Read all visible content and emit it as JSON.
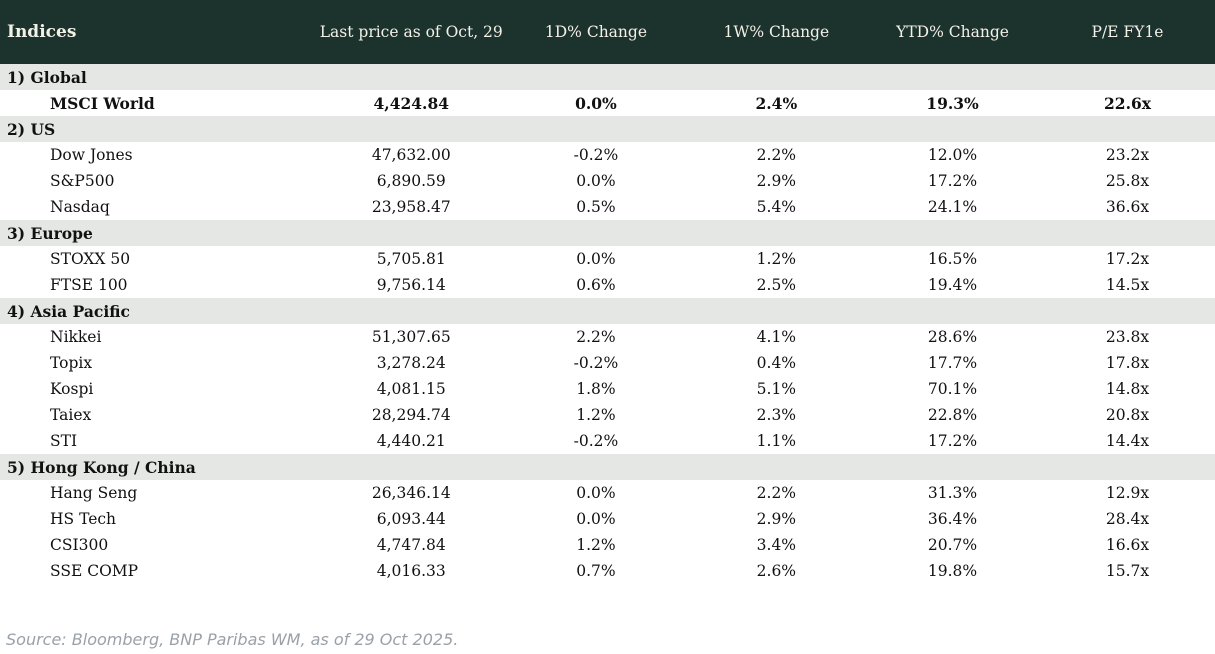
{
  "colors": {
    "header_bg": "#1c332d",
    "header_fg": "#f3f0e8",
    "section_band_bg": "#e4e7e3",
    "up": "#008a00",
    "down": "#c00000",
    "flat": "#111111",
    "source_text": "#9aa1a8"
  },
  "footer": {
    "source": "Source: Bloomberg, BNP Paribas WM, as of 29 Oct 2025."
  },
  "chart_data": {
    "type": "table",
    "title": "Indices",
    "columns": [
      "Indices",
      "Last price as of Oct, 29",
      "1D% Change",
      "1W% Change",
      "YTD% Change",
      "P/E FY1e"
    ],
    "sections": [
      {
        "label": "1) Global",
        "rows": [
          {
            "name": "MSCI World",
            "last_price": "4,424.84",
            "d1": {
              "v": "0.0%",
              "dir": "down"
            },
            "w1": {
              "v": "2.4%",
              "dir": "up"
            },
            "ytd": {
              "v": "19.3%",
              "dir": "up"
            },
            "pe": "22.6x",
            "emphasis": true
          }
        ]
      },
      {
        "label": "2) US",
        "rows": [
          {
            "name": "Dow Jones",
            "last_price": "47,632.00",
            "d1": {
              "v": "-0.2%",
              "dir": "down"
            },
            "w1": {
              "v": "2.2%",
              "dir": "up"
            },
            "ytd": {
              "v": "12.0%",
              "dir": "up"
            },
            "pe": "23.2x",
            "emphasis": false
          },
          {
            "name": "S&P500",
            "last_price": "6,890.59",
            "d1": {
              "v": "0.0%",
              "dir": "down"
            },
            "w1": {
              "v": "2.9%",
              "dir": "up"
            },
            "ytd": {
              "v": "17.2%",
              "dir": "up"
            },
            "pe": "25.8x",
            "emphasis": false
          },
          {
            "name": "Nasdaq",
            "last_price": "23,958.47",
            "d1": {
              "v": "0.5%",
              "dir": "up"
            },
            "w1": {
              "v": "5.4%",
              "dir": "up"
            },
            "ytd": {
              "v": "24.1%",
              "dir": "up"
            },
            "pe": "36.6x",
            "emphasis": false
          }
        ]
      },
      {
        "label": "3) Europe",
        "rows": [
          {
            "name": "STOXX 50",
            "last_price": "5,705.81",
            "d1": {
              "v": "0.0%",
              "dir": "up"
            },
            "w1": {
              "v": "1.2%",
              "dir": "up"
            },
            "ytd": {
              "v": "16.5%",
              "dir": "up"
            },
            "pe": "17.2x",
            "emphasis": false
          },
          {
            "name": "FTSE 100",
            "last_price": "9,756.14",
            "d1": {
              "v": "0.6%",
              "dir": "up"
            },
            "w1": {
              "v": "2.5%",
              "dir": "up"
            },
            "ytd": {
              "v": "19.4%",
              "dir": "up"
            },
            "pe": "14.5x",
            "emphasis": false
          }
        ]
      },
      {
        "label": "4) Asia Pacific",
        "rows": [
          {
            "name": "Nikkei",
            "last_price": "51,307.65",
            "d1": {
              "v": "2.2%",
              "dir": "up"
            },
            "w1": {
              "v": "4.1%",
              "dir": "up"
            },
            "ytd": {
              "v": "28.6%",
              "dir": "up"
            },
            "pe": "23.8x",
            "emphasis": false
          },
          {
            "name": "Topix",
            "last_price": "3,278.24",
            "d1": {
              "v": "-0.2%",
              "dir": "down"
            },
            "w1": {
              "v": "0.4%",
              "dir": "up"
            },
            "ytd": {
              "v": "17.7%",
              "dir": "up"
            },
            "pe": "17.8x",
            "emphasis": false
          },
          {
            "name": "Kospi",
            "last_price": "4,081.15",
            "d1": {
              "v": "1.8%",
              "dir": "up"
            },
            "w1": {
              "v": "5.1%",
              "dir": "up"
            },
            "ytd": {
              "v": "70.1%",
              "dir": "up"
            },
            "pe": "14.8x",
            "emphasis": false
          },
          {
            "name": "Taiex",
            "last_price": "28,294.74",
            "d1": {
              "v": "1.2%",
              "dir": "up"
            },
            "w1": {
              "v": "2.3%",
              "dir": "up"
            },
            "ytd": {
              "v": "22.8%",
              "dir": "up"
            },
            "pe": "20.8x",
            "emphasis": false
          },
          {
            "name": "STI",
            "last_price": "4,440.21",
            "d1": {
              "v": "-0.2%",
              "dir": "down"
            },
            "w1": {
              "v": "1.1%",
              "dir": "up"
            },
            "ytd": {
              "v": "17.2%",
              "dir": "up"
            },
            "pe": "14.4x",
            "emphasis": false
          }
        ]
      },
      {
        "label": "5) Hong Kong / China",
        "rows": [
          {
            "name": "Hang Seng",
            "last_price": "26,346.14",
            "d1": {
              "v": "0.0%",
              "dir": "flat"
            },
            "w1": {
              "v": "2.2%",
              "dir": "up"
            },
            "ytd": {
              "v": "31.3%",
              "dir": "up"
            },
            "pe": "12.9x",
            "emphasis": false
          },
          {
            "name": "HS Tech",
            "last_price": "6,093.44",
            "d1": {
              "v": "0.0%",
              "dir": "flat"
            },
            "w1": {
              "v": "2.9%",
              "dir": "up"
            },
            "ytd": {
              "v": "36.4%",
              "dir": "up"
            },
            "pe": "28.4x",
            "emphasis": false
          },
          {
            "name": "CSI300",
            "last_price": "4,747.84",
            "d1": {
              "v": "1.2%",
              "dir": "up"
            },
            "w1": {
              "v": "3.4%",
              "dir": "up"
            },
            "ytd": {
              "v": "20.7%",
              "dir": "up"
            },
            "pe": "16.6x",
            "emphasis": false
          },
          {
            "name": "SSE COMP",
            "last_price": "4,016.33",
            "d1": {
              "v": "0.7%",
              "dir": "up"
            },
            "w1": {
              "v": "2.6%",
              "dir": "up"
            },
            "ytd": {
              "v": "19.8%",
              "dir": "up"
            },
            "pe": "15.7x",
            "emphasis": false
          }
        ]
      }
    ]
  }
}
